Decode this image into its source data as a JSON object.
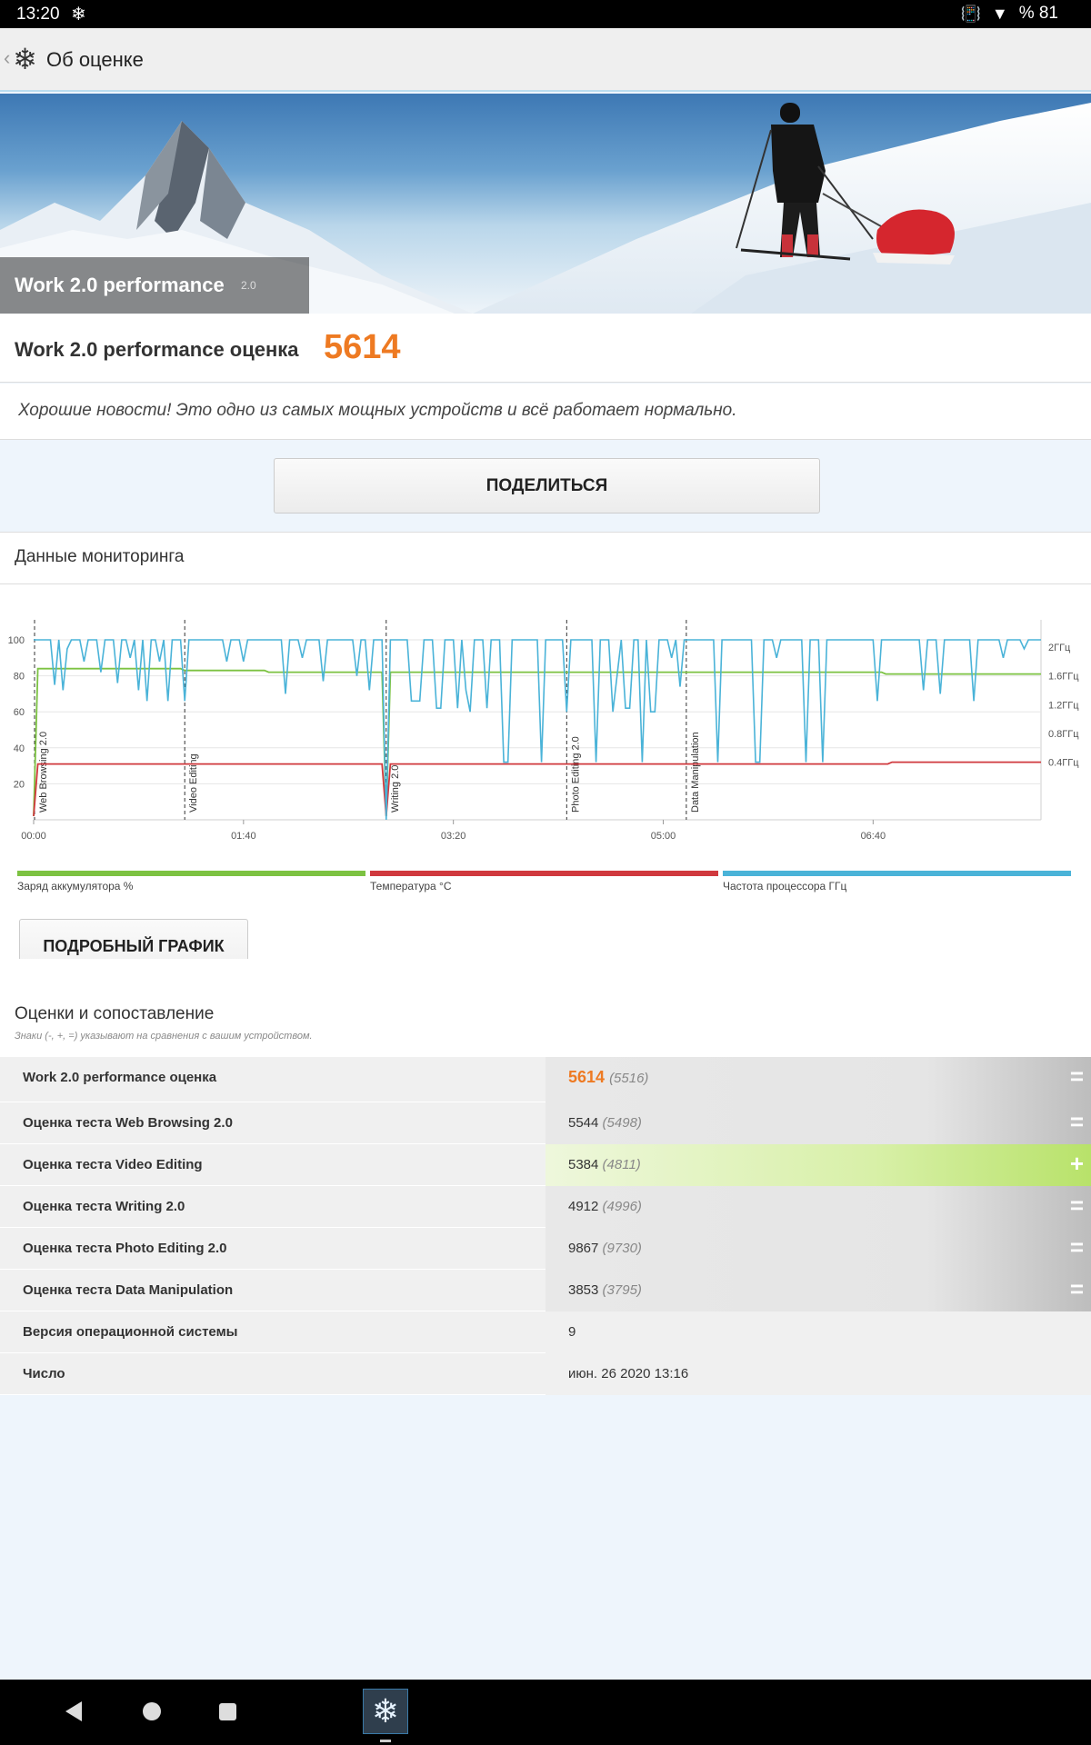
{
  "status_bar": {
    "time": "13:20",
    "battery": "% 81",
    "icons": [
      "snowflake-icon",
      "vibrate-icon",
      "wifi-icon",
      "battery-icon"
    ]
  },
  "app_bar": {
    "title": "Об оценке"
  },
  "hero": {
    "title": "Work 2.0 performance",
    "version": "2.0"
  },
  "score": {
    "label": "Work 2.0 performance оценка",
    "value": "5614",
    "accent_color": "#ee7a22"
  },
  "message": "Хорошие новости! Это одно из самых мощных устройств и всё работает нормально.",
  "share_button": "ПОДЕЛИТЬСЯ",
  "monitoring": {
    "title": "Данные мониторинга",
    "detail_button": "ПОДРОБНЫЙ ГРАФИК"
  },
  "chart_data": {
    "type": "line",
    "x_ticks": [
      "00:00",
      "01:40",
      "03:20",
      "05:00",
      "06:40"
    ],
    "y_left_ticks": [
      "100",
      "80",
      "60",
      "40",
      "20"
    ],
    "y_right_ticks": [
      "2ГГц",
      "1.6ГГц",
      "1.2ГГц",
      "0.8ГГц",
      "0.4ГГц"
    ],
    "ylim": [
      0,
      100
    ],
    "xlim_seconds": [
      0,
      480
    ],
    "markers": [
      {
        "label": "Web Browsing 2.0",
        "t": 0
      },
      {
        "label": "Video Editing",
        "t": 72
      },
      {
        "label": "Writing 2.0",
        "t": 168
      },
      {
        "label": "Photo Editing 2.0",
        "t": 254
      },
      {
        "label": "Data Manipulation",
        "t": 311
      }
    ],
    "series": [
      {
        "name": "Заряд аккумулятора %",
        "color": "#7cc242",
        "points": [
          [
            0,
            2
          ],
          [
            2,
            84
          ],
          [
            70,
            84
          ],
          [
            72,
            83
          ],
          [
            110,
            83
          ],
          [
            112,
            82
          ],
          [
            166,
            82
          ],
          [
            168,
            2
          ],
          [
            170,
            82
          ],
          [
            404,
            82
          ],
          [
            406,
            81
          ],
          [
            480,
            81
          ]
        ]
      },
      {
        "name": "Температура °C",
        "color": "#d0393e",
        "points": [
          [
            0,
            2
          ],
          [
            2,
            31
          ],
          [
            166,
            31
          ],
          [
            168,
            2
          ],
          [
            170,
            31
          ],
          [
            407,
            31
          ],
          [
            409,
            32
          ],
          [
            480,
            32
          ]
        ]
      },
      {
        "name": "Частота процессора ГГц",
        "color": "#4ab3d8",
        "points": [
          [
            0,
            100
          ],
          [
            2,
            100
          ],
          [
            8,
            100
          ],
          [
            10,
            75
          ],
          [
            12,
            100
          ],
          [
            14,
            72
          ],
          [
            16,
            95
          ],
          [
            18,
            100
          ],
          [
            22,
            100
          ],
          [
            24,
            88
          ],
          [
            26,
            100
          ],
          [
            30,
            100
          ],
          [
            32,
            82
          ],
          [
            34,
            100
          ],
          [
            38,
            100
          ],
          [
            40,
            76
          ],
          [
            42,
            100
          ],
          [
            44,
            100
          ],
          [
            46,
            90
          ],
          [
            48,
            100
          ],
          [
            50,
            72
          ],
          [
            52,
            100
          ],
          [
            54,
            66
          ],
          [
            56,
            100
          ],
          [
            58,
            100
          ],
          [
            60,
            88
          ],
          [
            62,
            100
          ],
          [
            64,
            66
          ],
          [
            66,
            100
          ],
          [
            70,
            100
          ],
          [
            72,
            66
          ],
          [
            74,
            100
          ],
          [
            90,
            100
          ],
          [
            92,
            88
          ],
          [
            94,
            100
          ],
          [
            98,
            100
          ],
          [
            100,
            88
          ],
          [
            102,
            100
          ],
          [
            118,
            100
          ],
          [
            120,
            70
          ],
          [
            122,
            100
          ],
          [
            126,
            100
          ],
          [
            128,
            90
          ],
          [
            130,
            100
          ],
          [
            136,
            100
          ],
          [
            138,
            77
          ],
          [
            140,
            100
          ],
          [
            152,
            100
          ],
          [
            154,
            80
          ],
          [
            156,
            100
          ],
          [
            158,
            100
          ],
          [
            160,
            72
          ],
          [
            162,
            100
          ],
          [
            166,
            100
          ],
          [
            168,
            0
          ],
          [
            170,
            100
          ],
          [
            178,
            100
          ],
          [
            180,
            66
          ],
          [
            184,
            66
          ],
          [
            186,
            100
          ],
          [
            190,
            100
          ],
          [
            192,
            62
          ],
          [
            194,
            62
          ],
          [
            196,
            100
          ],
          [
            200,
            100
          ],
          [
            202,
            62
          ],
          [
            204,
            100
          ],
          [
            206,
            72
          ],
          [
            208,
            60
          ],
          [
            210,
            100
          ],
          [
            214,
            100
          ],
          [
            216,
            62
          ],
          [
            218,
            100
          ],
          [
            222,
            100
          ],
          [
            224,
            32
          ],
          [
            226,
            32
          ],
          [
            228,
            100
          ],
          [
            240,
            100
          ],
          [
            242,
            32
          ],
          [
            244,
            100
          ],
          [
            252,
            100
          ],
          [
            254,
            60
          ],
          [
            256,
            100
          ],
          [
            266,
            100
          ],
          [
            268,
            32
          ],
          [
            270,
            100
          ],
          [
            274,
            100
          ],
          [
            276,
            60
          ],
          [
            278,
            80
          ],
          [
            280,
            100
          ],
          [
            282,
            62
          ],
          [
            284,
            62
          ],
          [
            286,
            100
          ],
          [
            288,
            100
          ],
          [
            290,
            32
          ],
          [
            292,
            100
          ],
          [
            294,
            60
          ],
          [
            296,
            60
          ],
          [
            298,
            100
          ],
          [
            302,
            100
          ],
          [
            304,
            90
          ],
          [
            306,
            100
          ],
          [
            308,
            74
          ],
          [
            310,
            100
          ],
          [
            324,
            100
          ],
          [
            326,
            32
          ],
          [
            328,
            100
          ],
          [
            342,
            100
          ],
          [
            344,
            32
          ],
          [
            346,
            32
          ],
          [
            348,
            100
          ],
          [
            352,
            100
          ],
          [
            354,
            90
          ],
          [
            356,
            100
          ],
          [
            366,
            100
          ],
          [
            368,
            32
          ],
          [
            370,
            100
          ],
          [
            374,
            100
          ],
          [
            376,
            32
          ],
          [
            378,
            100
          ],
          [
            400,
            100
          ],
          [
            402,
            66
          ],
          [
            404,
            100
          ],
          [
            422,
            100
          ],
          [
            424,
            72
          ],
          [
            426,
            100
          ],
          [
            430,
            100
          ],
          [
            432,
            70
          ],
          [
            434,
            100
          ],
          [
            446,
            100
          ],
          [
            448,
            66
          ],
          [
            450,
            100
          ],
          [
            460,
            100
          ],
          [
            462,
            90
          ],
          [
            464,
            100
          ],
          [
            470,
            100
          ],
          [
            472,
            95
          ],
          [
            474,
            100
          ],
          [
            480,
            100
          ]
        ]
      }
    ]
  },
  "comparison": {
    "title": "Оценки и сопоставление",
    "note": "Знаки (-, +, =) указывают на сравнения с вашим устройством.",
    "rows": [
      {
        "label": "Work 2.0 performance оценка",
        "value": "5614",
        "compare": "(5516)",
        "sign": "=",
        "style": "total"
      },
      {
        "label": "Оценка теста Web Browsing 2.0",
        "value": "5544",
        "compare": "(5498)",
        "sign": "=",
        "style": "equal"
      },
      {
        "label": "Оценка теста Video Editing",
        "value": "5384",
        "compare": "(4811)",
        "sign": "+",
        "style": "plus"
      },
      {
        "label": "Оценка теста Writing 2.0",
        "value": "4912",
        "compare": "(4996)",
        "sign": "=",
        "style": "equal"
      },
      {
        "label": "Оценка теста Photo Editing 2.0",
        "value": "9867",
        "compare": "(9730)",
        "sign": "=",
        "style": "equal"
      },
      {
        "label": "Оценка теста Data Manipulation",
        "value": "3853",
        "compare": "(3795)",
        "sign": "=",
        "style": "equal"
      },
      {
        "label": "Версия операционной системы",
        "value": "9",
        "compare": "",
        "sign": "",
        "style": "plain"
      },
      {
        "label": "Число",
        "value": "июн. 26 2020 13:16",
        "compare": "",
        "sign": "",
        "style": "plain"
      }
    ]
  }
}
